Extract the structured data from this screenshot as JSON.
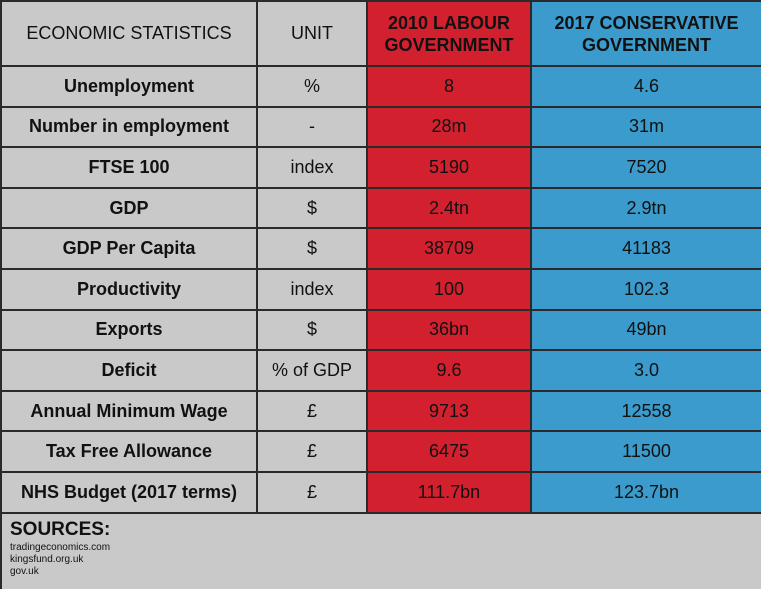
{
  "table": {
    "header": [
      "ECONOMIC STATISTICS",
      "UNIT",
      "2010 LABOUR GOVERNMENT",
      "2017 CONSERVATIVE GOVERNMENT"
    ],
    "rows": [
      [
        "Unemployment",
        "%",
        "8",
        "4.6"
      ],
      [
        "Number in employment",
        "-",
        "28m",
        "31m"
      ],
      [
        "FTSE 100",
        "index",
        "5190",
        "7520"
      ],
      [
        "GDP",
        "$",
        "2.4tn",
        "2.9tn"
      ],
      [
        "GDP Per Capita",
        "$",
        "38709",
        "41183"
      ],
      [
        "Productivity",
        "index",
        "100",
        "102.3"
      ],
      [
        "Exports",
        "$",
        "36bn",
        "49bn"
      ],
      [
        "Deficit",
        "% of GDP",
        "9.6",
        "3.0"
      ],
      [
        "Annual Minimum Wage",
        "£",
        "9713",
        "12558"
      ],
      [
        "Tax Free Allowance",
        "£",
        "6475",
        "11500"
      ],
      [
        "NHS Budget (2017 terms)",
        "£",
        "111.7bn",
        "123.7bn"
      ]
    ]
  },
  "sources": {
    "title": "SOURCES:",
    "items": [
      "tradingeconomics.com",
      "kingsfund.org.uk",
      "gov.uk"
    ]
  }
}
